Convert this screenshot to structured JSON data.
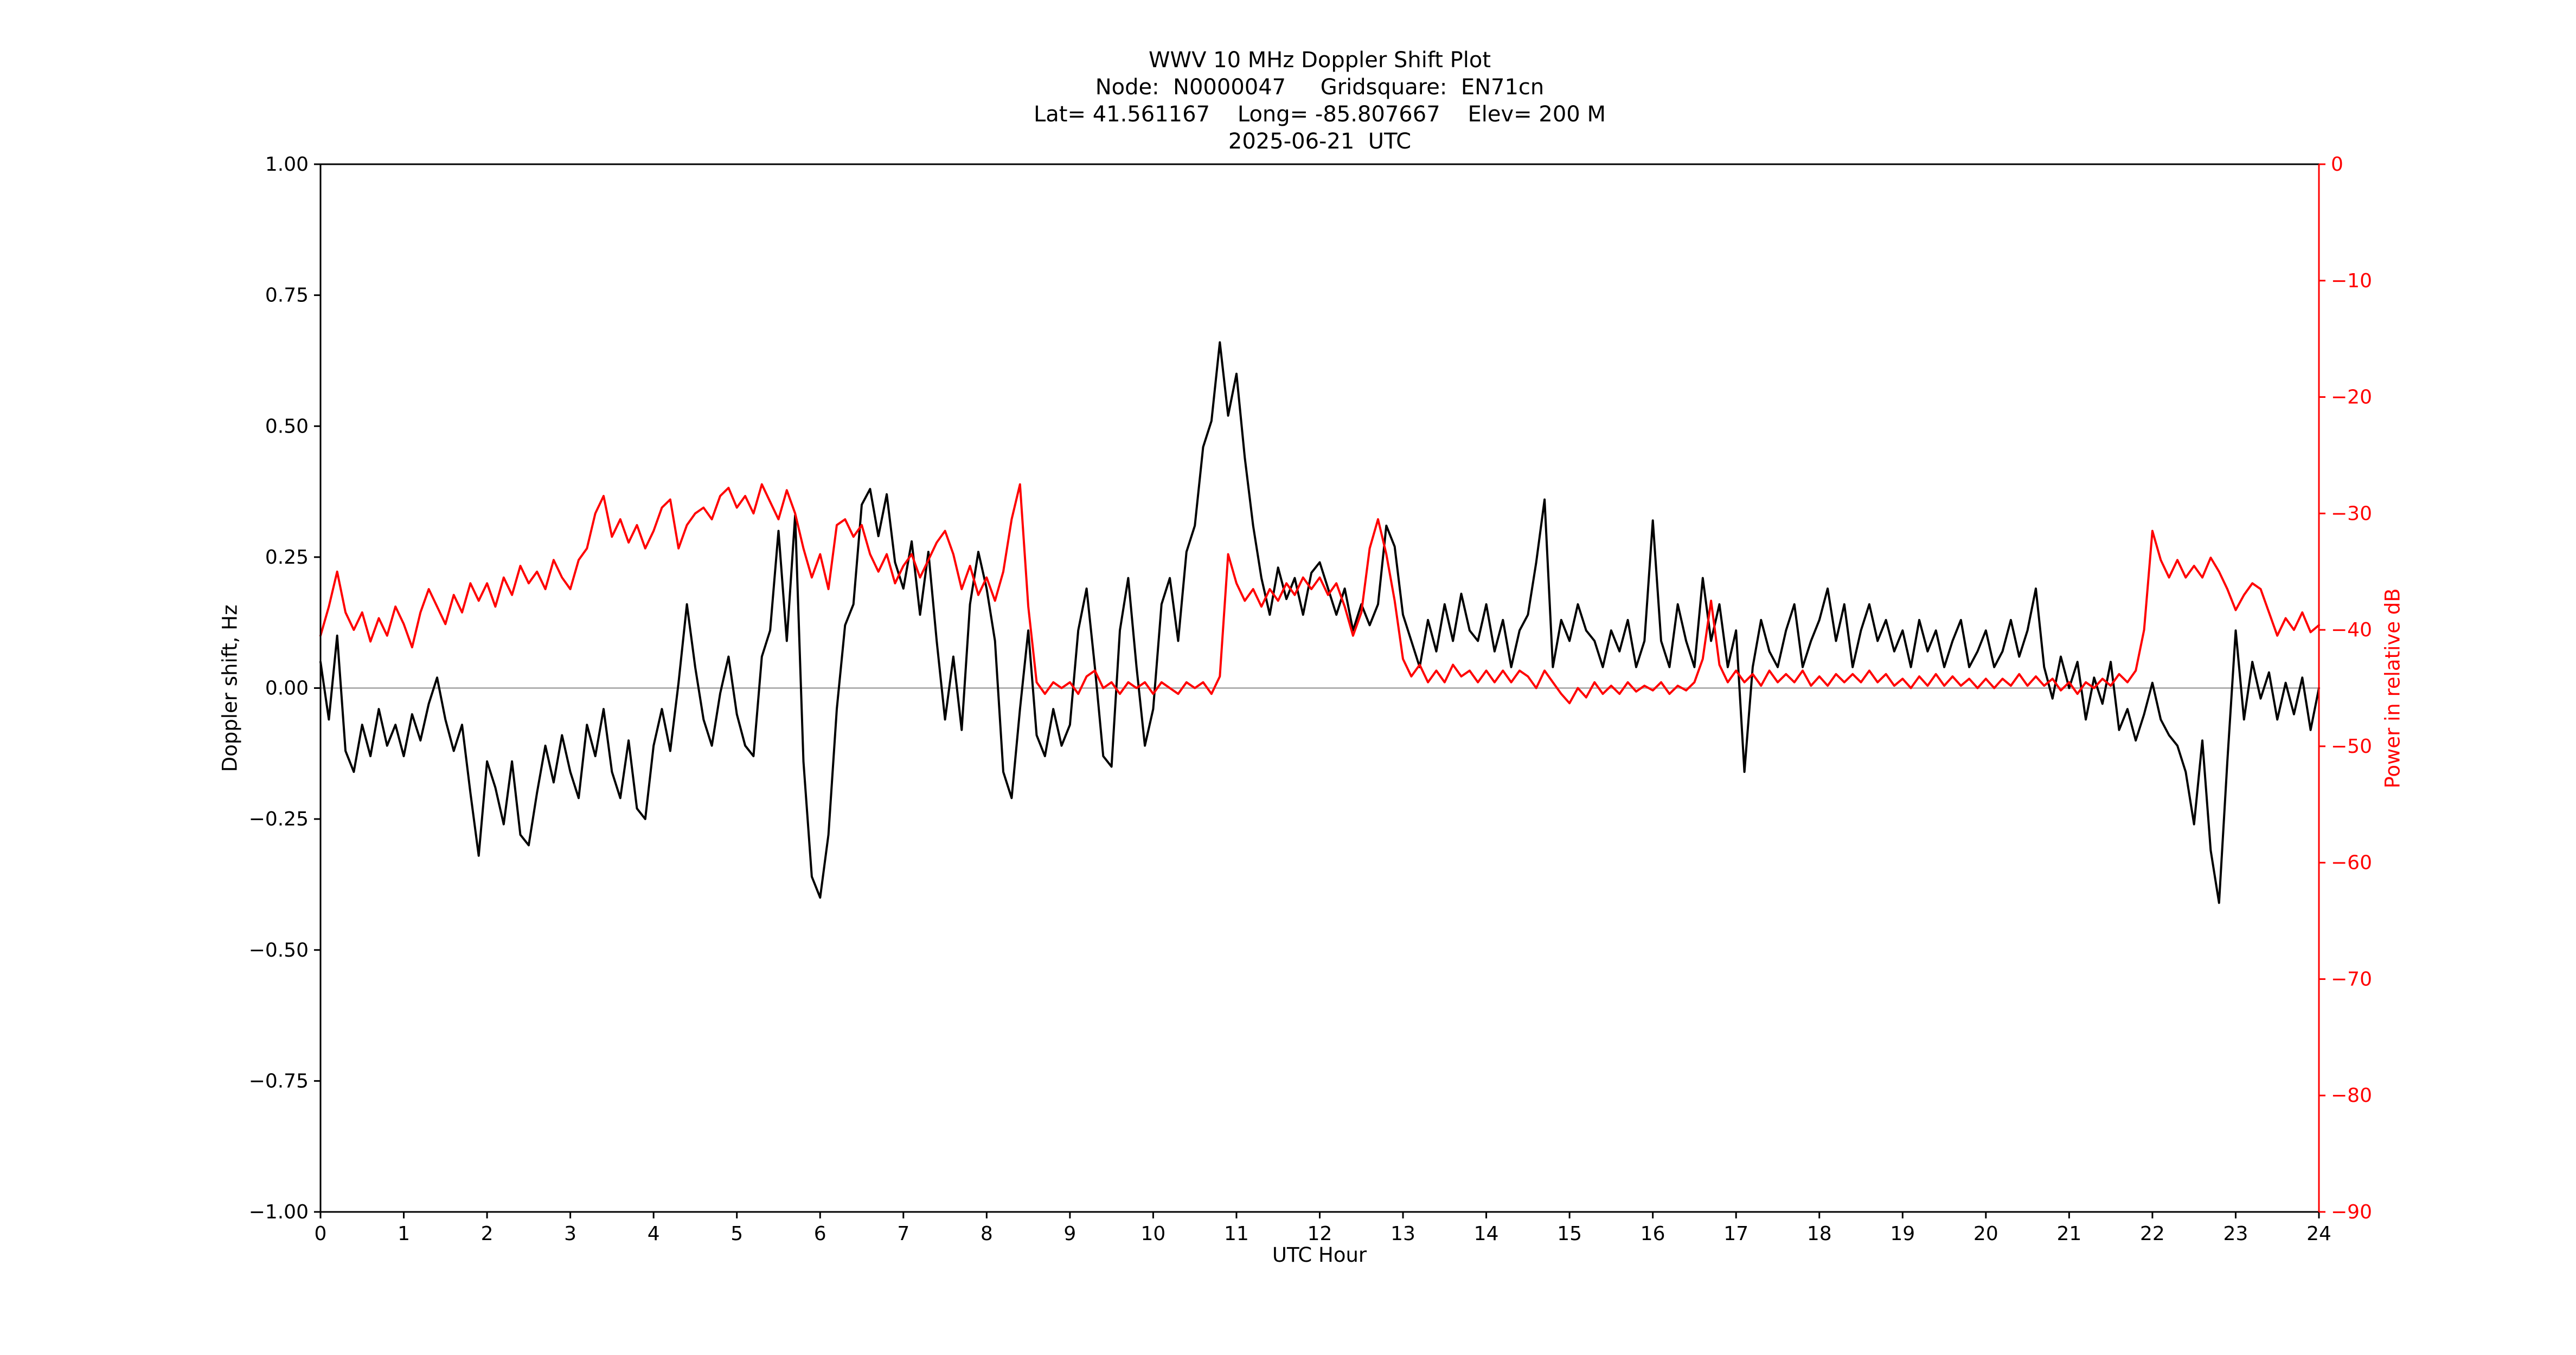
{
  "header": {
    "title": "WWV 10 MHz Doppler Shift Plot",
    "subtitle_node": "Node:  N0000047     Gridsquare:  EN71cn",
    "subtitle_location": "Lat= 41.561167    Long= -85.807667    Elev= 200 M",
    "subtitle_date": "2025-06-21  UTC"
  },
  "chart_data": {
    "type": "line",
    "title": "WWV 10 MHz Doppler Shift Plot",
    "xlabel": "UTC Hour",
    "ylabel_left": "Doppler shift, Hz",
    "ylabel_right": "Power in relative dB",
    "x_range": [
      0,
      24
    ],
    "ylim_left": [
      -1.0,
      1.0
    ],
    "ylim_right": [
      -90,
      0
    ],
    "grid": "off",
    "legend": "none",
    "x_ticks": [
      0,
      1,
      2,
      3,
      4,
      5,
      6,
      7,
      8,
      9,
      10,
      11,
      12,
      13,
      14,
      15,
      16,
      17,
      18,
      19,
      20,
      21,
      22,
      23,
      24
    ],
    "y_ticks_left": [
      1.0,
      0.75,
      0.5,
      0.25,
      0.0,
      -0.25,
      -0.5,
      -0.75,
      -1.0
    ],
    "y_ticks_left_labels": [
      "1.00",
      "0.75",
      "0.50",
      "0.25",
      "0.00",
      "−0.25",
      "−0.50",
      "−0.75",
      "−1.00"
    ],
    "y_ticks_right": [
      0,
      -10,
      -20,
      -30,
      -40,
      -50,
      -60,
      -70,
      -80,
      -90
    ],
    "y_ticks_right_labels": [
      "0",
      "−10",
      "−20",
      "−30",
      "−40",
      "−50",
      "−60",
      "−70",
      "−80",
      "−90"
    ],
    "colors": {
      "doppler": "#000000",
      "power": "#ff0000",
      "zero_line": "#b0b0b0",
      "frame": "#000000",
      "right_axis": "#ff0000"
    },
    "zero_reference_line": 0.0,
    "series": [
      {
        "name": "Doppler shift",
        "axis": "left",
        "units": "Hz",
        "color": "#000000",
        "x_start": 0,
        "x_step": 0.1,
        "values": [
          0.05,
          -0.06,
          0.1,
          -0.12,
          -0.16,
          -0.07,
          -0.13,
          -0.04,
          -0.11,
          -0.07,
          -0.13,
          -0.05,
          -0.1,
          -0.03,
          0.02,
          -0.06,
          -0.12,
          -0.07,
          -0.2,
          -0.32,
          -0.14,
          -0.19,
          -0.26,
          -0.14,
          -0.28,
          -0.3,
          -0.2,
          -0.11,
          -0.18,
          -0.09,
          -0.16,
          -0.21,
          -0.07,
          -0.13,
          -0.04,
          -0.16,
          -0.21,
          -0.1,
          -0.23,
          -0.25,
          -0.11,
          -0.04,
          -0.12,
          0.01,
          0.16,
          0.04,
          -0.06,
          -0.11,
          -0.01,
          0.06,
          -0.05,
          -0.11,
          -0.13,
          0.06,
          0.11,
          0.3,
          0.09,
          0.33,
          -0.14,
          -0.36,
          -0.4,
          -0.28,
          -0.04,
          0.12,
          0.16,
          0.35,
          0.38,
          0.29,
          0.37,
          0.24,
          0.19,
          0.28,
          0.14,
          0.26,
          0.09,
          -0.06,
          0.06,
          -0.08,
          0.16,
          0.26,
          0.19,
          0.09,
          -0.16,
          -0.21,
          -0.04,
          0.11,
          -0.09,
          -0.13,
          -0.04,
          -0.11,
          -0.07,
          0.11,
          0.19,
          0.04,
          -0.13,
          -0.15,
          0.11,
          0.21,
          0.04,
          -0.11,
          -0.04,
          0.16,
          0.21,
          0.09,
          0.26,
          0.31,
          0.46,
          0.51,
          0.66,
          0.52,
          0.6,
          0.44,
          0.31,
          0.21,
          0.14,
          0.23,
          0.17,
          0.21,
          0.14,
          0.22,
          0.24,
          0.19,
          0.14,
          0.19,
          0.11,
          0.16,
          0.12,
          0.16,
          0.31,
          0.27,
          0.14,
          0.09,
          0.04,
          0.13,
          0.07,
          0.16,
          0.09,
          0.18,
          0.11,
          0.09,
          0.16,
          0.07,
          0.13,
          0.04,
          0.11,
          0.14,
          0.24,
          0.36,
          0.04,
          0.13,
          0.09,
          0.16,
          0.11,
          0.09,
          0.04,
          0.11,
          0.07,
          0.13,
          0.04,
          0.09,
          0.32,
          0.09,
          0.04,
          0.16,
          0.09,
          0.04,
          0.21,
          0.09,
          0.16,
          0.04,
          0.11,
          -0.16,
          0.04,
          0.13,
          0.07,
          0.04,
          0.11,
          0.16,
          0.04,
          0.09,
          0.13,
          0.19,
          0.09,
          0.16,
          0.04,
          0.11,
          0.16,
          0.09,
          0.13,
          0.07,
          0.11,
          0.04,
          0.13,
          0.07,
          0.11,
          0.04,
          0.09,
          0.13,
          0.04,
          0.07,
          0.11,
          0.04,
          0.07,
          0.13,
          0.06,
          0.11,
          0.19,
          0.04,
          -0.02,
          0.06,
          0,
          0.05,
          -0.06,
          0.02,
          -0.03,
          0.05,
          -0.08,
          -0.04,
          -0.1,
          -0.05,
          0.01,
          -0.06,
          -0.09,
          -0.11,
          -0.16,
          -0.26,
          -0.1,
          -0.31,
          -0.41,
          -0.14,
          0.11,
          -0.06,
          0.05,
          -0.02,
          0.03,
          -0.06,
          0.01,
          -0.05,
          0.02,
          -0.08,
          0
        ]
      },
      {
        "name": "Power",
        "axis": "right",
        "units": "relative dB",
        "color": "#ff0000",
        "x_start": 0,
        "x_step": 0.1,
        "values": [
          -40.5,
          -38,
          -35,
          -38.5,
          -40,
          -38.5,
          -41,
          -39,
          -40.5,
          -38,
          -39.5,
          -41.5,
          -38.5,
          -36.5,
          -38,
          -39.5,
          -37,
          -38.5,
          -36,
          -37.5,
          -36,
          -38,
          -35.5,
          -37,
          -34.5,
          -36,
          -35,
          -36.5,
          -34,
          -35.5,
          -36.5,
          -34,
          -33,
          -30,
          -28.5,
          -32,
          -30.5,
          -32.5,
          -31,
          -33,
          -31.5,
          -29.5,
          -28.8,
          -33,
          -31,
          -30,
          -29.5,
          -30.5,
          -28.5,
          -27.8,
          -29.5,
          -28.5,
          -30,
          -27.5,
          -29,
          -30.5,
          -28,
          -30,
          -33,
          -35.5,
          -33.5,
          -36.5,
          -31,
          -30.5,
          -32,
          -31,
          -33.5,
          -35,
          -33.5,
          -36,
          -34.5,
          -33.5,
          -35.5,
          -34,
          -32.5,
          -31.5,
          -33.5,
          -36.5,
          -34.5,
          -37,
          -35.5,
          -37.5,
          -35,
          -30.5,
          -27.5,
          -38,
          -44.5,
          -45.5,
          -44.5,
          -45,
          -44.5,
          -45.5,
          -44,
          -43.5,
          -45,
          -44.5,
          -45.5,
          -44.5,
          -45,
          -44.5,
          -45.5,
          -44.5,
          -45,
          -45.5,
          -44.5,
          -45,
          -44.5,
          -45.5,
          -44,
          -33.5,
          -36,
          -37.5,
          -36.5,
          -38,
          -36.5,
          -37.5,
          -36,
          -37,
          -35.5,
          -36.5,
          -35.5,
          -37,
          -36,
          -38,
          -40.5,
          -38.5,
          -33,
          -30.5,
          -33.5,
          -37.5,
          -42.5,
          -44,
          -43,
          -44.5,
          -43.5,
          -44.5,
          -43,
          -44,
          -43.5,
          -44.5,
          -43.5,
          -44.5,
          -43.5,
          -44.5,
          -43.5,
          -44,
          -45,
          -43.5,
          -44.5,
          -45.5,
          -46.3,
          -45,
          -45.8,
          -44.5,
          -45.5,
          -44.8,
          -45.5,
          -44.5,
          -45.3,
          -44.8,
          -45.2,
          -44.5,
          -45.5,
          -44.8,
          -45.2,
          -44.5,
          -42.5,
          -37.5,
          -43,
          -44.5,
          -43.5,
          -44.5,
          -43.8,
          -44.8,
          -43.5,
          -44.5,
          -43.8,
          -44.5,
          -43.5,
          -44.8,
          -44,
          -44.8,
          -43.8,
          -44.5,
          -43.8,
          -44.5,
          -43.5,
          -44.5,
          -43.8,
          -44.8,
          -44.2,
          -45,
          -44,
          -44.8,
          -43.8,
          -44.8,
          -44,
          -44.8,
          -44.2,
          -45,
          -44.2,
          -45,
          -44.2,
          -44.8,
          -43.8,
          -44.8,
          -44,
          -44.8,
          -44.2,
          -45.2,
          -44.5,
          -45.5,
          -44.5,
          -45,
          -44.2,
          -44.8,
          -43.8,
          -44.5,
          -43.5,
          -40,
          -31.5,
          -34,
          -35.5,
          -34,
          -35.5,
          -34.5,
          -35.5,
          -33.8,
          -35,
          -36.5,
          -38.3,
          -37,
          -36,
          -36.5,
          -38.5,
          -40.5,
          -39,
          -40,
          -38.5,
          -40.2,
          -39.6
        ]
      }
    ]
  }
}
